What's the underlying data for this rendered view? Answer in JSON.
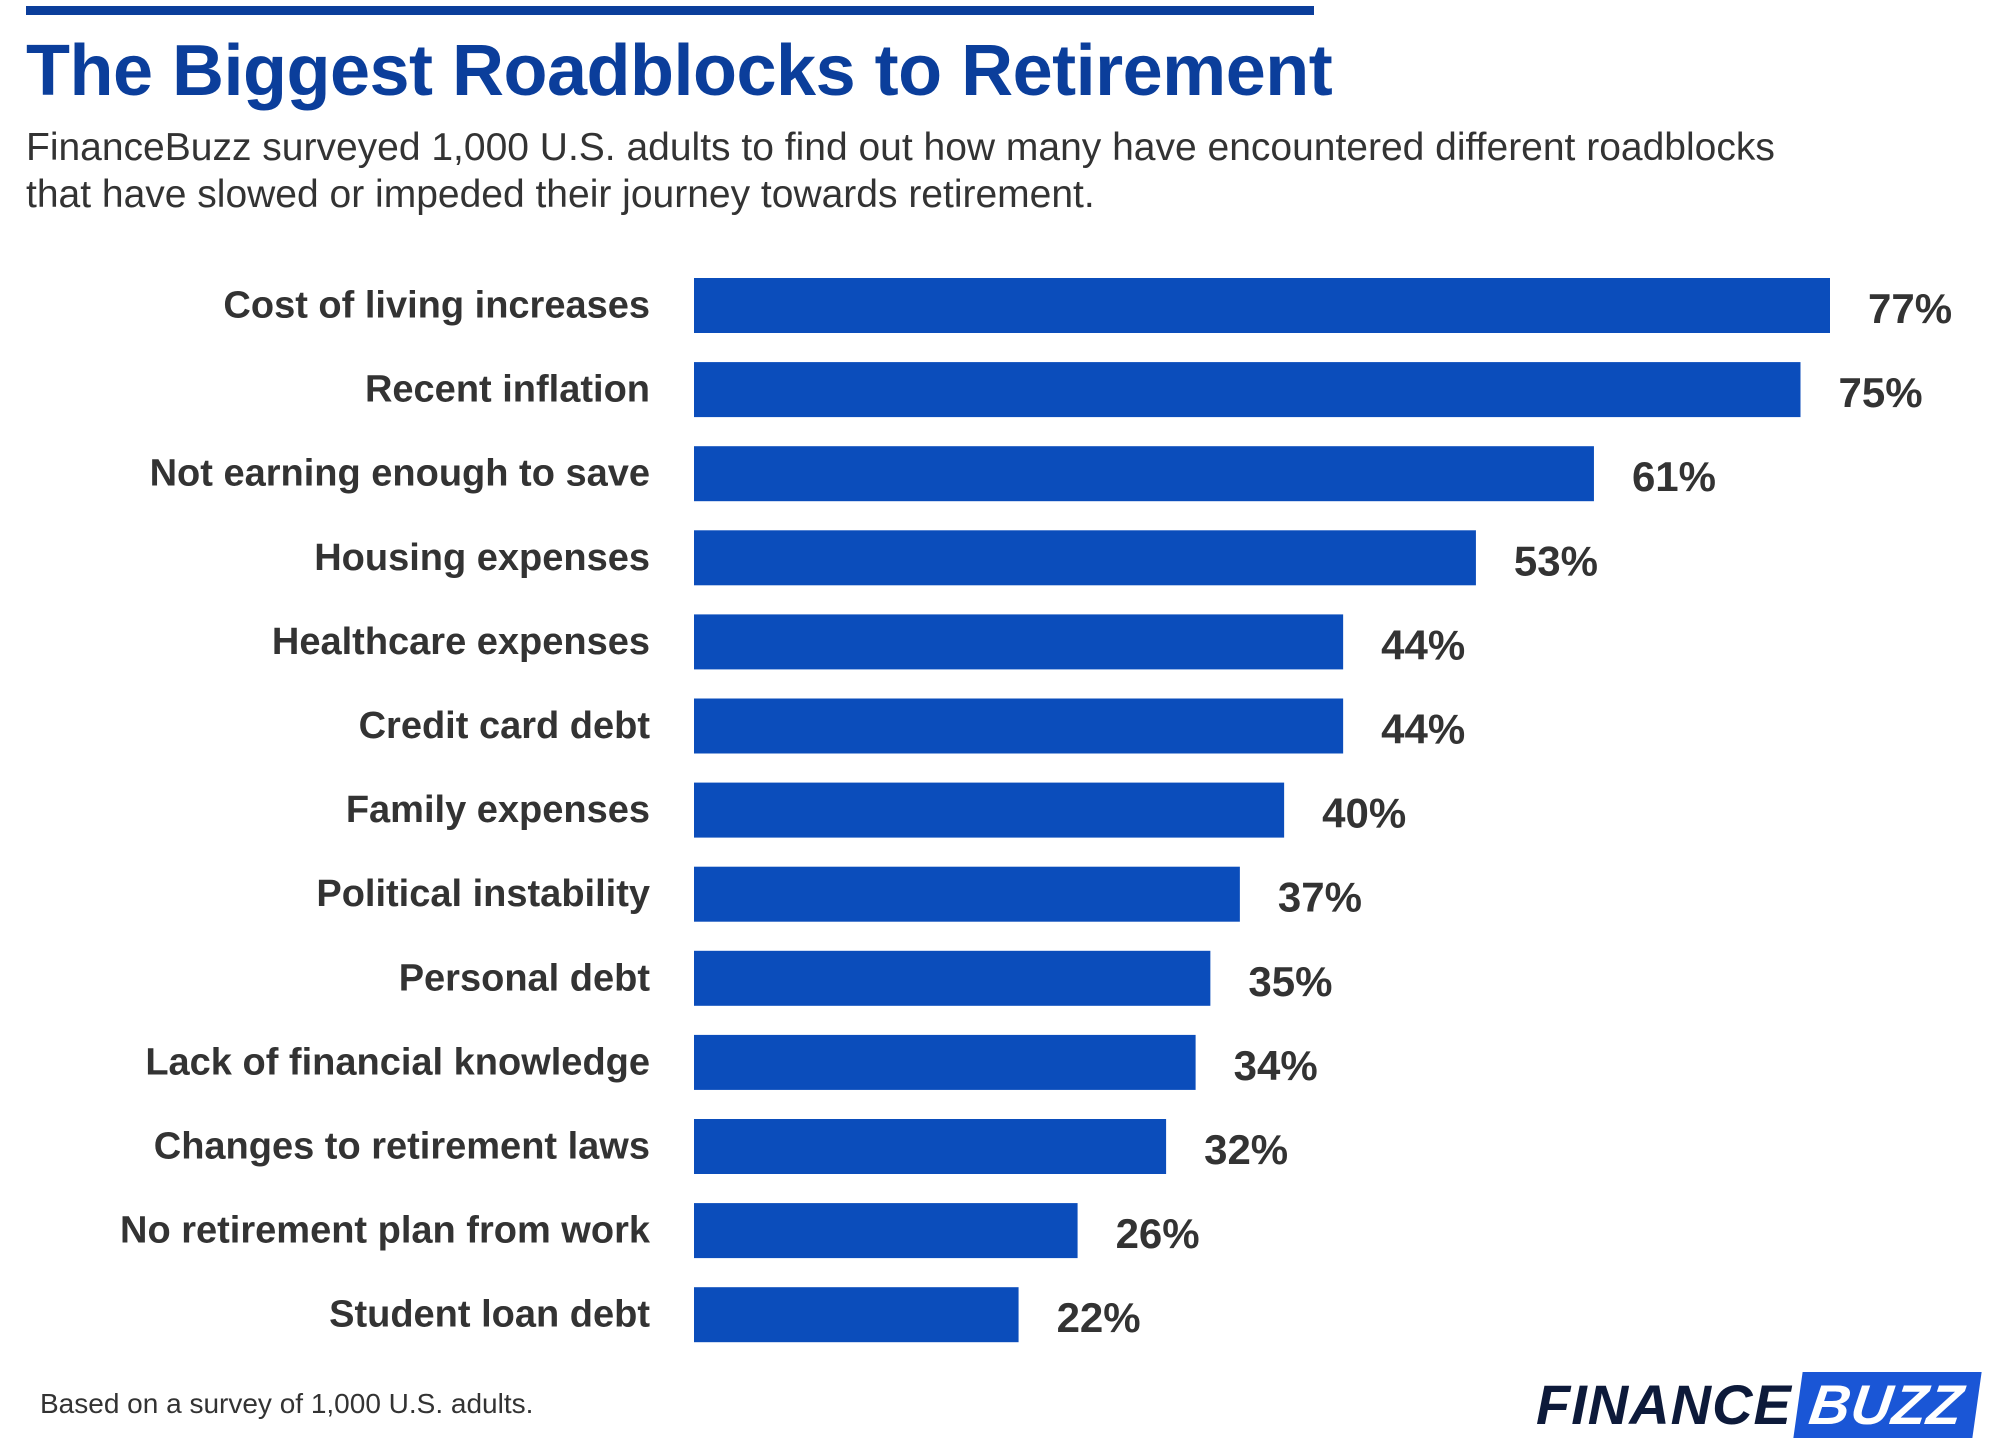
{
  "header": {
    "title": "The Biggest Roadblocks to Retirement",
    "subtitle_line1": "FinanceBuzz surveyed 1,000 U.S. adults to find out how many have encountered different roadblocks",
    "subtitle_line2": "that have slowed or impeded their journey towards retirement."
  },
  "footer": {
    "note": "Based on a survey of 1,000 U.S. adults.",
    "logo_part1": "FINANCE",
    "logo_part2": "BUZZ"
  },
  "colors": {
    "bar": "#0b4dbb",
    "title": "#0b3e9b",
    "label_text": "#333333",
    "logo_accent": "#1a56d6"
  },
  "chart_data": {
    "type": "bar",
    "orientation": "horizontal",
    "categories": [
      "Cost of living increases",
      "Recent inflation",
      "Not earning enough to save",
      "Housing expenses",
      "Healthcare expenses",
      "Credit card debt",
      "Family expenses",
      "Political instability",
      "Personal debt",
      "Lack of financial knowledge",
      "Changes to retirement laws",
      "No retirement plan from work",
      "Student loan debt"
    ],
    "values": [
      77,
      75,
      61,
      53,
      44,
      44,
      40,
      37,
      35,
      34,
      32,
      26,
      22
    ],
    "value_labels": [
      "77%",
      "75%",
      "61%",
      "53%",
      "44%",
      "44%",
      "40%",
      "37%",
      "35%",
      "34%",
      "32%",
      "26%",
      "22%"
    ],
    "title": "The Biggest Roadblocks to Retirement",
    "xlabel": "",
    "ylabel": "",
    "xlim": [
      0,
      77
    ],
    "grid": false,
    "legend": "none"
  }
}
